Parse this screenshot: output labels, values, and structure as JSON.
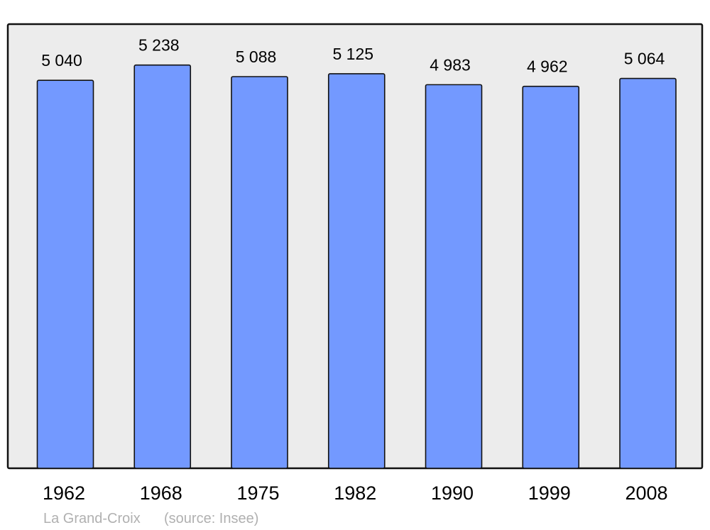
{
  "chart_data": {
    "type": "bar",
    "categories": [
      "1962",
      "1968",
      "1975",
      "1982",
      "1990",
      "1999",
      "2008"
    ],
    "values": [
      5040,
      5238,
      5088,
      5125,
      4983,
      4962,
      5064
    ],
    "value_labels": [
      "5 040",
      "5 238",
      "5 088",
      "5 125",
      "4 983",
      "4 962",
      "5 064"
    ],
    "title": "",
    "xlabel": "",
    "ylabel": "",
    "ylim": [
      0,
      5770
    ],
    "grid": false,
    "bar_color": "#7399ff",
    "plot_background": "#ececec"
  },
  "footer": {
    "place": "La Grand-Croix",
    "source": "(source: Insee)"
  }
}
